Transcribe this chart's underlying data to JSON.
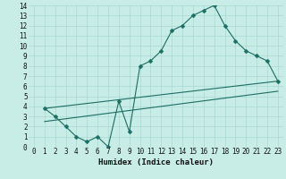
{
  "xlabel": "Humidex (Indice chaleur)",
  "bg_color": "#c8ece6",
  "grid_color": "#a8d8d0",
  "line_color": "#1a6e64",
  "xlim": [
    -0.5,
    23.5
  ],
  "ylim": [
    0,
    14
  ],
  "xticks": [
    0,
    1,
    2,
    3,
    4,
    5,
    6,
    7,
    8,
    9,
    10,
    11,
    12,
    13,
    14,
    15,
    16,
    17,
    18,
    19,
    20,
    21,
    22,
    23
  ],
  "yticks": [
    0,
    1,
    2,
    3,
    4,
    5,
    6,
    7,
    8,
    9,
    10,
    11,
    12,
    13,
    14
  ],
  "line1_x": [
    1,
    2,
    3,
    4,
    5,
    6,
    7,
    8,
    9,
    10,
    11,
    12,
    13,
    14,
    15,
    16,
    17,
    18,
    19,
    20,
    21,
    22,
    23
  ],
  "line1_y": [
    3.8,
    3.0,
    2.0,
    1.0,
    0.5,
    1.0,
    0.0,
    4.5,
    1.5,
    8.0,
    8.5,
    9.5,
    11.5,
    12.0,
    13.0,
    13.5,
    14.0,
    12.0,
    10.5,
    9.5,
    9.0,
    8.5,
    6.5
  ],
  "line2_x": [
    1,
    23
  ],
  "line2_y": [
    2.5,
    5.5
  ],
  "line3_x": [
    1,
    23
  ],
  "line3_y": [
    3.8,
    6.5
  ],
  "marker": "D",
  "markersize": 2.5,
  "linewidth": 0.8,
  "tick_fontsize": 5.5,
  "xlabel_fontsize": 6.5
}
